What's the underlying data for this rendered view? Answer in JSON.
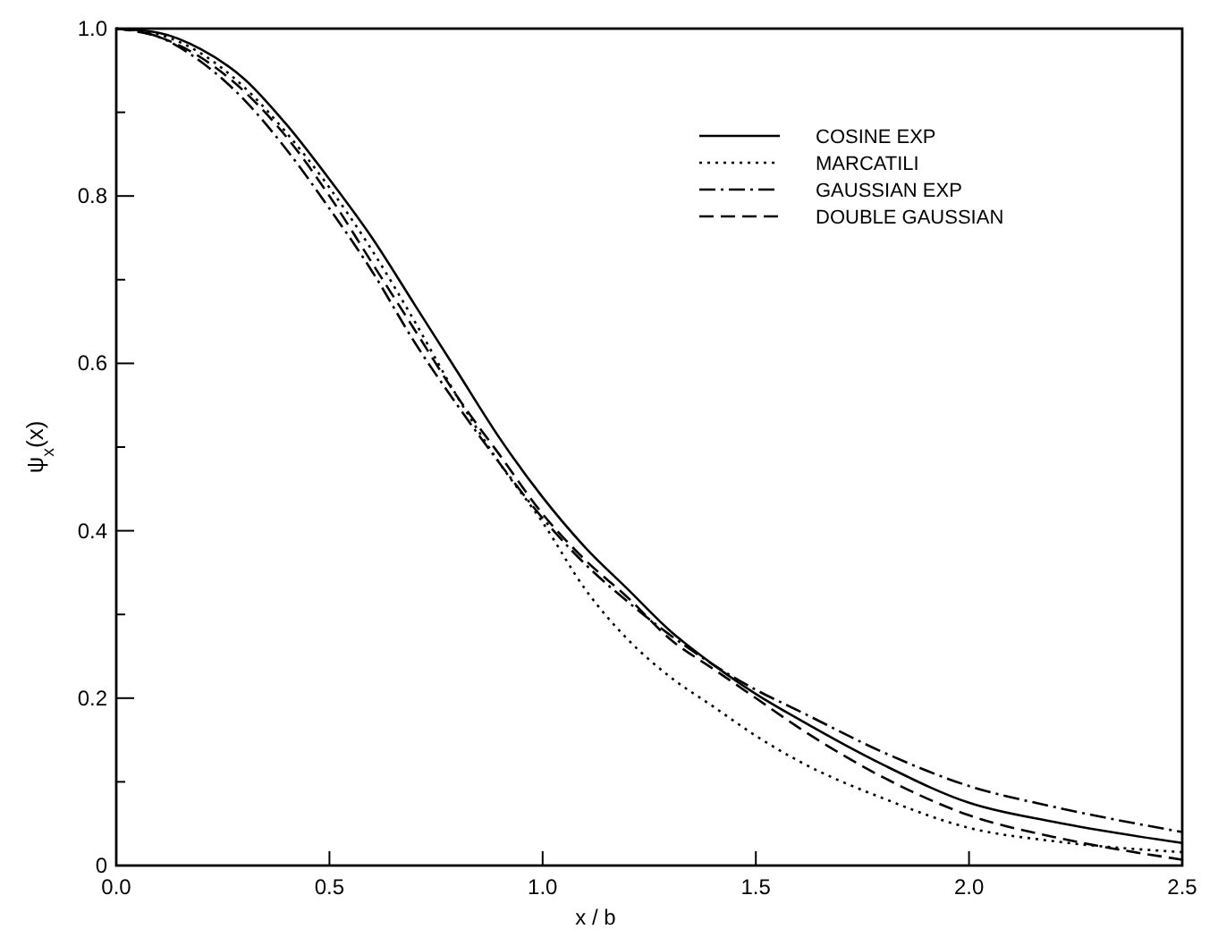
{
  "chart_data": {
    "type": "line",
    "xlabel": "x / b",
    "ylabel": "ψ$_{x}$(x)",
    "x": [
      0,
      0.1,
      0.2,
      0.3,
      0.4,
      0.5,
      0.6,
      0.7,
      0.8,
      0.9,
      1.0,
      1.1,
      1.2,
      1.3,
      1.4,
      1.5,
      1.6,
      1.8,
      2.0,
      2.2,
      2.5
    ],
    "series": [
      {
        "name": "COSINE EXP",
        "color": "#000000",
        "line_style": "solid",
        "values": [
          1,
          0.995,
          0.975,
          0.94,
          0.885,
          0.82,
          0.75,
          0.67,
          0.59,
          0.51,
          0.44,
          0.38,
          0.33,
          0.28,
          0.24,
          0.205,
          0.175,
          0.12,
          0.075,
          0.052,
          0.027
        ]
      },
      {
        "name": "MARCATILI",
        "color": "#000000",
        "line_style": "dotted",
        "values": [
          1,
          0.993,
          0.97,
          0.93,
          0.875,
          0.81,
          0.735,
          0.65,
          0.56,
          0.48,
          0.41,
          0.33,
          0.27,
          0.225,
          0.19,
          0.155,
          0.125,
          0.08,
          0.045,
          0.029,
          0.016
        ]
      },
      {
        "name": "GAUSSIAN EXP",
        "color": "#000000",
        "line_style": "dashdot",
        "values": [
          1,
          0.99,
          0.96,
          0.915,
          0.855,
          0.785,
          0.71,
          0.625,
          0.55,
          0.48,
          0.415,
          0.36,
          0.315,
          0.275,
          0.24,
          0.21,
          0.185,
          0.135,
          0.095,
          0.07,
          0.04
        ]
      },
      {
        "name": "DOUBLE GAUSSIAN",
        "color": "#000000",
        "line_style": "dashed",
        "values": [
          1,
          0.99,
          0.965,
          0.925,
          0.87,
          0.8,
          0.72,
          0.64,
          0.56,
          0.49,
          0.42,
          0.365,
          0.32,
          0.27,
          0.235,
          0.2,
          0.165,
          0.105,
          0.06,
          0.034,
          0.007
        ]
      }
    ],
    "xlim": [
      0,
      2.5
    ],
    "xticks": [
      {
        "value": 0,
        "label": "0.0"
      },
      0.5,
      {
        "value": 1,
        "label": "1.0"
      },
      1.5,
      {
        "value": 2,
        "label": "2.0"
      },
      2.5
    ],
    "ylim": [
      0,
      1
    ],
    "yticks": [
      0,
      {
        "value": 0.1,
        "label": null
      },
      0.2,
      {
        "value": 0.3,
        "label": null
      },
      0.4,
      {
        "value": 0.5,
        "label": null
      },
      0.6,
      {
        "value": 0.7,
        "label": null
      },
      0.8,
      {
        "value": 0.9,
        "label": null
      },
      {
        "value": 1,
        "label": "1.0"
      }
    ],
    "marker": "none",
    "grid": false,
    "legend": "top right"
  }
}
